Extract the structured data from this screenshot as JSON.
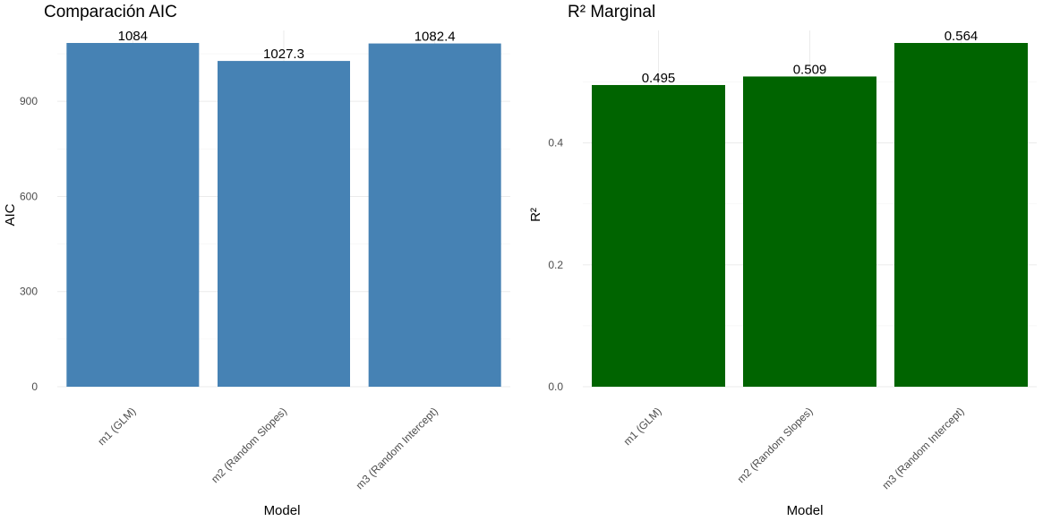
{
  "panels": [
    {
      "title": "Comparación AIC",
      "chart_data": {
        "type": "bar",
        "categories": [
          "m1 (GLM)",
          "m2 (Random Slopes)",
          "m3 (Random Intercept)"
        ],
        "values": [
          1084,
          1027.3,
          1082.4
        ],
        "value_labels": [
          "1084",
          "1027.3",
          "1082.4"
        ],
        "title": "Comparación AIC",
        "xlabel": "Model",
        "ylabel": "AIC",
        "ylim": [
          0,
          1084
        ],
        "yticks": [
          0,
          300,
          600,
          900
        ],
        "ytick_labels": [
          "0",
          "300",
          "600",
          "900"
        ],
        "color": "#4682B4",
        "grid": true
      }
    },
    {
      "title": "R² Marginal",
      "chart_data": {
        "type": "bar",
        "categories": [
          "m1 (GLM)",
          "m2 (Random Slopes)",
          "m3 (Random Intercept)"
        ],
        "values": [
          0.495,
          0.509,
          0.564
        ],
        "value_labels": [
          "0.495",
          "0.509",
          "0.564"
        ],
        "title": "R² Marginal",
        "xlabel": "Model",
        "ylabel": "R²",
        "ylim": [
          0,
          0.564
        ],
        "yticks": [
          0,
          0.2,
          0.4
        ],
        "ytick_labels": [
          "0.0",
          "0.2",
          "0.4"
        ],
        "color": "#006400",
        "grid": true
      }
    }
  ]
}
